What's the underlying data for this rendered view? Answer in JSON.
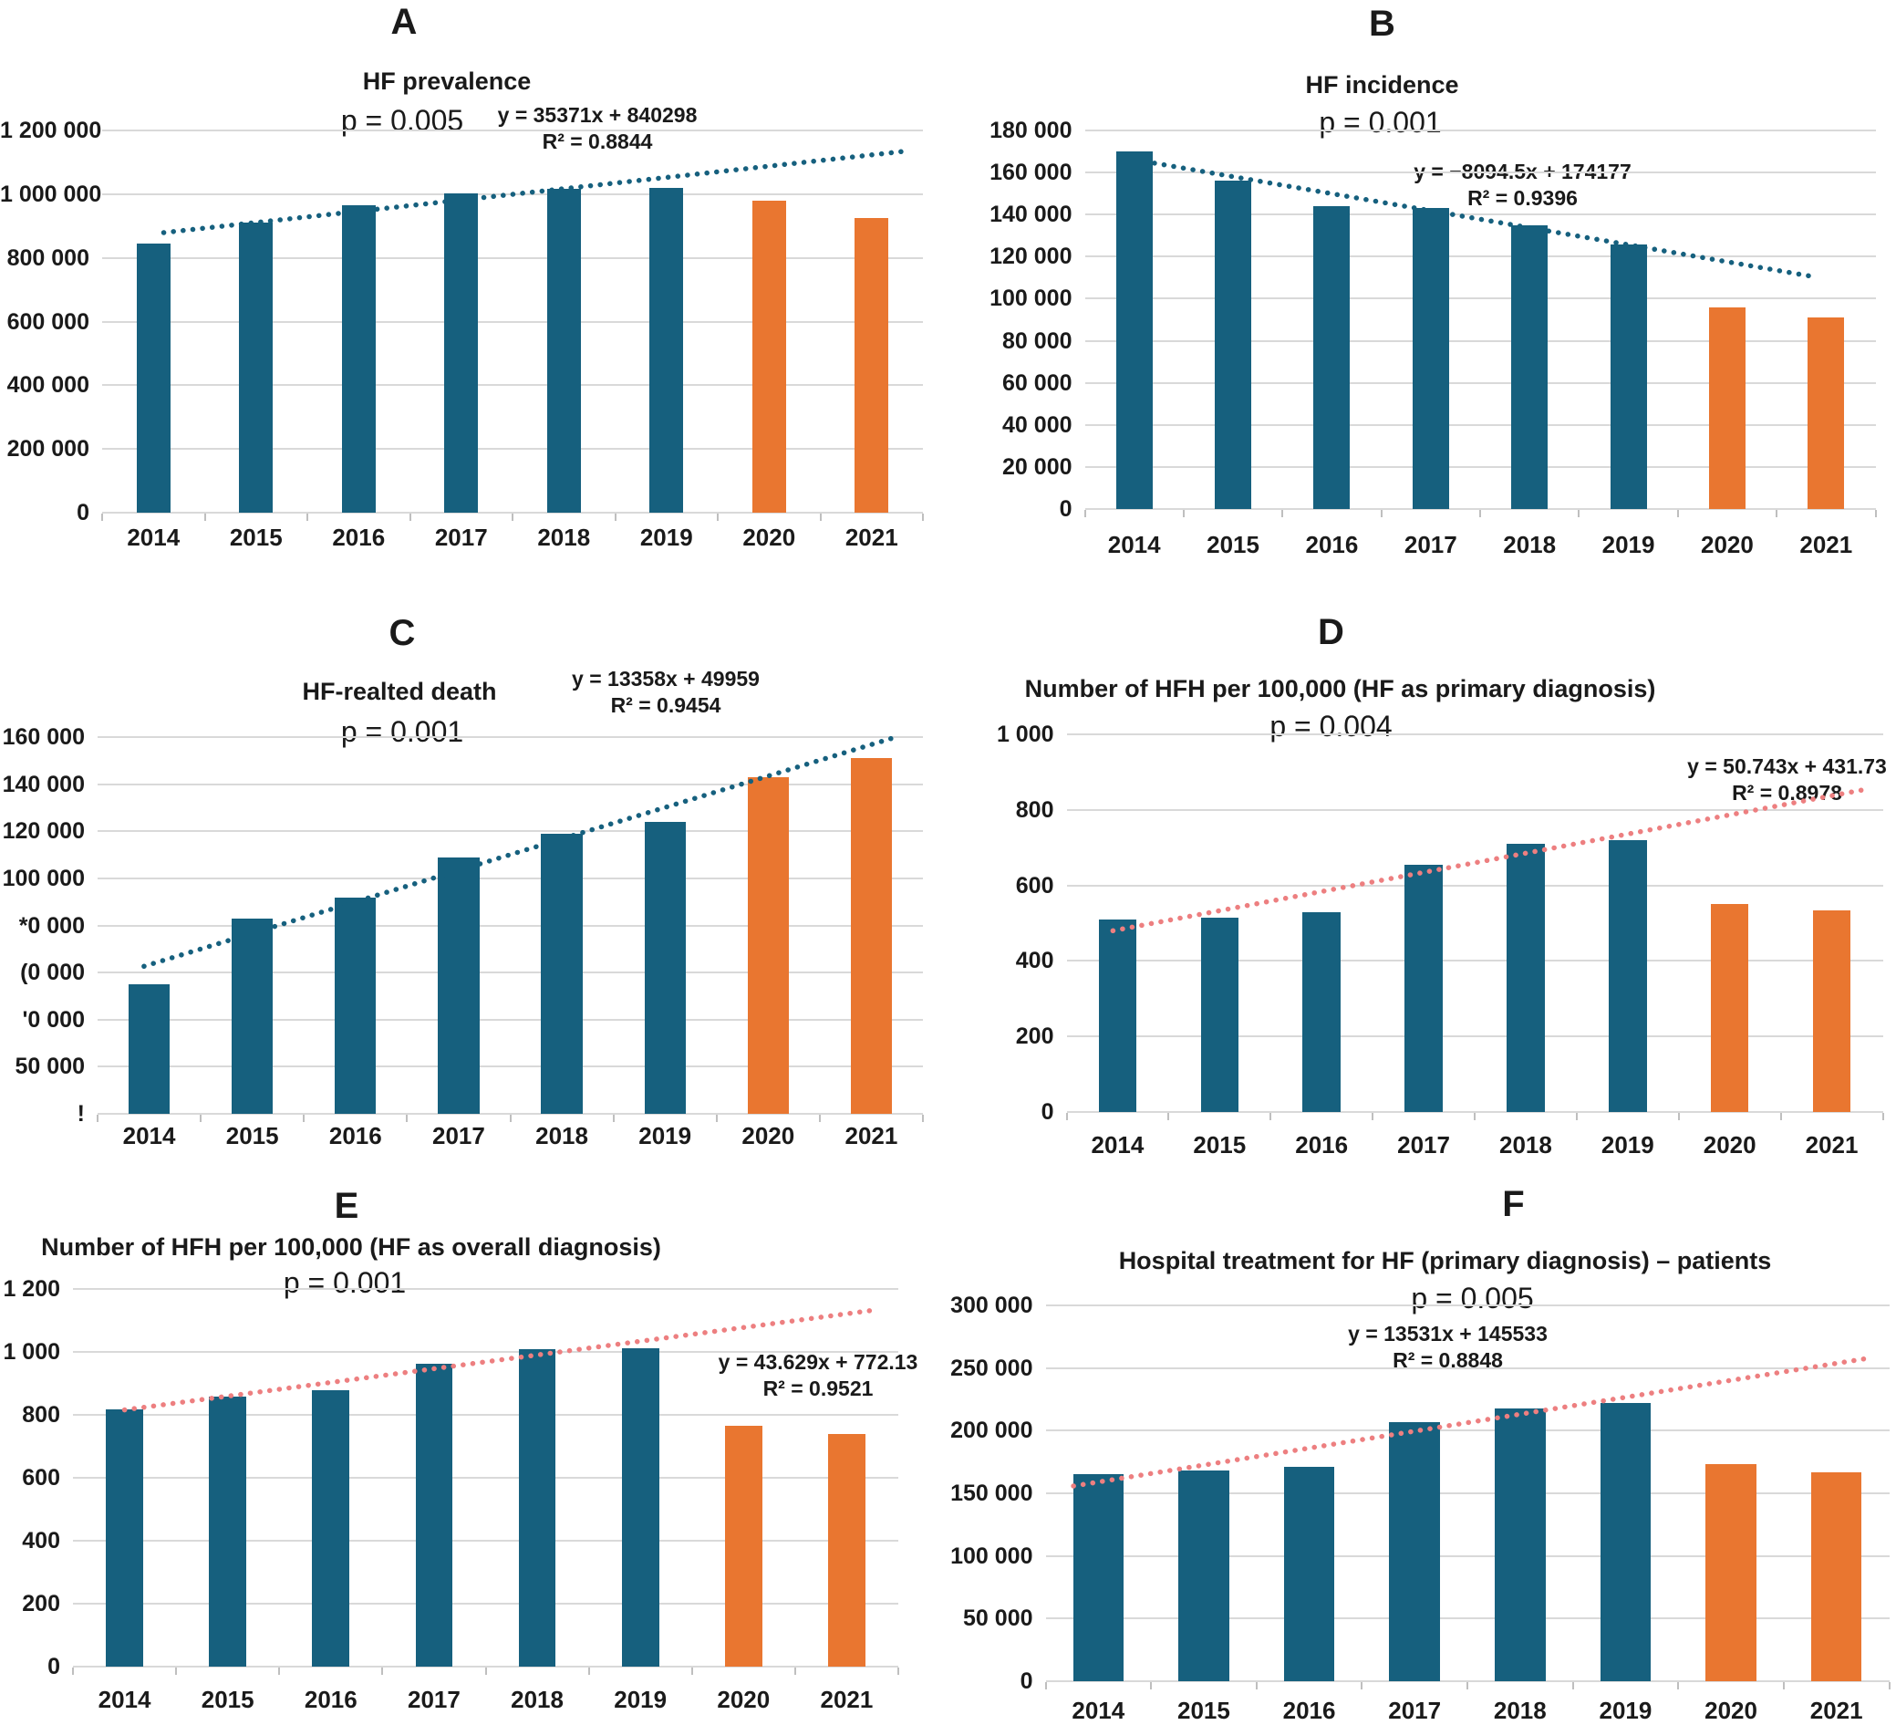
{
  "figure": {
    "background": "#FFFFFF",
    "grid": true,
    "colors": {
      "bar_blue": "#16607E",
      "bar_orange": "#E97630",
      "trend_blue": "#16607E",
      "trend_pink": "#ED7F80",
      "gridline": "#D9D9D9",
      "axis_tick": "#BFBFBF",
      "text": "#1A1A1A"
    },
    "years": [
      "2014",
      "2015",
      "2016",
      "2017",
      "2018",
      "2019",
      "2020",
      "2021"
    ]
  },
  "chart_data": [
    {
      "type": "bar",
      "panel": "A",
      "title": "HF prevalence",
      "p_value": "p = 0.005",
      "equation": "y = 35371x + 840298",
      "r_squared": "R² = 0.8844",
      "trend": {
        "slope": 35371,
        "intercept": 840298,
        "color": "blue"
      },
      "categories": [
        "2014",
        "2015",
        "2016",
        "2017",
        "2018",
        "2019",
        "2020",
        "2021"
      ],
      "values": [
        845000,
        912000,
        966000,
        1002000,
        1017000,
        1021000,
        980000,
        925000
      ],
      "bar_colors": [
        "blue",
        "blue",
        "blue",
        "blue",
        "blue",
        "blue",
        "orange",
        "orange"
      ],
      "ylim": [
        0,
        1200000
      ],
      "y_ticks": [
        "1 200 000",
        "1 000 000",
        "800 000",
        "600 000",
        "400 000",
        "200 000",
        "0"
      ]
    },
    {
      "type": "bar",
      "panel": "B",
      "title": "HF incidence",
      "p_value": "p = 0.001",
      "equation": "y = −8094.5x + 174177",
      "r_squared": "R² = 0.9396",
      "trend": {
        "slope": -8094.5,
        "intercept": 174177,
        "color": "blue"
      },
      "categories": [
        "2014",
        "2015",
        "2016",
        "2017",
        "2018",
        "2019",
        "2020",
        "2021"
      ],
      "values": [
        170000,
        156000,
        144000,
        143000,
        135000,
        126000,
        96000,
        91000
      ],
      "bar_colors": [
        "blue",
        "blue",
        "blue",
        "blue",
        "blue",
        "blue",
        "orange",
        "orange"
      ],
      "ylim": [
        0,
        180000
      ],
      "y_ticks": [
        "180 000",
        "160 000",
        "140 000",
        "120 000",
        "100 000",
        "80 000",
        "60 000",
        "40 000",
        "20 000",
        "0"
      ]
    },
    {
      "type": "bar",
      "panel": "C",
      "title": "HF-realted death",
      "p_value": "p = 0.001",
      "equation": "y = 13358x + 49959",
      "r_squared": "R² = 0.9454",
      "trend": {
        "slope": 13358,
        "intercept": 49959,
        "color": "blue"
      },
      "categories": [
        "2014",
        "2015",
        "2016",
        "2017",
        "2018",
        "2019",
        "2020",
        "2021"
      ],
      "values": [
        55000,
        83000,
        92000,
        109000,
        119000,
        124000,
        143000,
        151000
      ],
      "bar_colors": [
        "blue",
        "blue",
        "blue",
        "blue",
        "blue",
        "blue",
        "orange",
        "orange"
      ],
      "ylim": [
        0,
        160000
      ],
      "y_ticks": [
        "160 000",
        "140 000",
        "120 000",
        "100 000",
        "*0 000",
        "(0 000",
        "'0 000",
        "50 000",
        "!"
      ]
    },
    {
      "type": "bar",
      "panel": "D",
      "title": "Number of HFH per 100,000 (HF as primary diagnosis)",
      "p_value": "p = 0.004",
      "equation": "y = 50.743x + 431.73",
      "r_squared": "R² = 0.8978",
      "trend": {
        "slope": 50.743,
        "intercept": 431.73,
        "color": "pink"
      },
      "categories": [
        "2014",
        "2015",
        "2016",
        "2017",
        "2018",
        "2019",
        "2020",
        "2021"
      ],
      "values": [
        510,
        515,
        530,
        655,
        710,
        720,
        550,
        535
      ],
      "bar_colors": [
        "blue",
        "blue",
        "blue",
        "blue",
        "blue",
        "blue",
        "orange",
        "orange"
      ],
      "ylim": [
        0,
        1000
      ],
      "y_ticks": [
        "1 000",
        "800",
        "600",
        "400",
        "200",
        "0"
      ]
    },
    {
      "type": "bar",
      "panel": "E",
      "title": "Number of HFH per 100,000 (HF as overall diagnosis)",
      "p_value": "p = 0.001",
      "equation": "y = 43.629x + 772.13",
      "r_squared": "R² = 0.9521",
      "trend": {
        "slope": 43.629,
        "intercept": 772.13,
        "color": "pink"
      },
      "categories": [
        "2014",
        "2015",
        "2016",
        "2017",
        "2018",
        "2019",
        "2020",
        "2021"
      ],
      "values": [
        818,
        858,
        878,
        962,
        1008,
        1012,
        765,
        740
      ],
      "bar_colors": [
        "blue",
        "blue",
        "blue",
        "blue",
        "blue",
        "blue",
        "orange",
        "orange"
      ],
      "ylim": [
        0,
        1200
      ],
      "y_ticks": [
        "1 200",
        "1 000",
        "800",
        "600",
        "400",
        "200",
        "0"
      ]
    },
    {
      "type": "bar",
      "panel": "F",
      "title": "Hospital treatment for HF (primary diagnosis) – patients",
      "p_value": "p = 0.005",
      "equation": "y = 13531x + 145533",
      "r_squared": "R² = 0.8848",
      "trend": {
        "slope": 13531,
        "intercept": 145533,
        "color": "pink"
      },
      "categories": [
        "2014",
        "2015",
        "2016",
        "2017",
        "2018",
        "2019",
        "2020",
        "2021"
      ],
      "values": [
        165000,
        168000,
        171000,
        207000,
        218000,
        222000,
        173000,
        167000
      ],
      "bar_colors": [
        "blue",
        "blue",
        "blue",
        "blue",
        "blue",
        "blue",
        "orange",
        "orange"
      ],
      "ylim": [
        0,
        300000
      ],
      "y_ticks": [
        "300 000",
        "250 000",
        "200 000",
        "150 000",
        "100 000",
        "50 000",
        "0"
      ]
    }
  ]
}
